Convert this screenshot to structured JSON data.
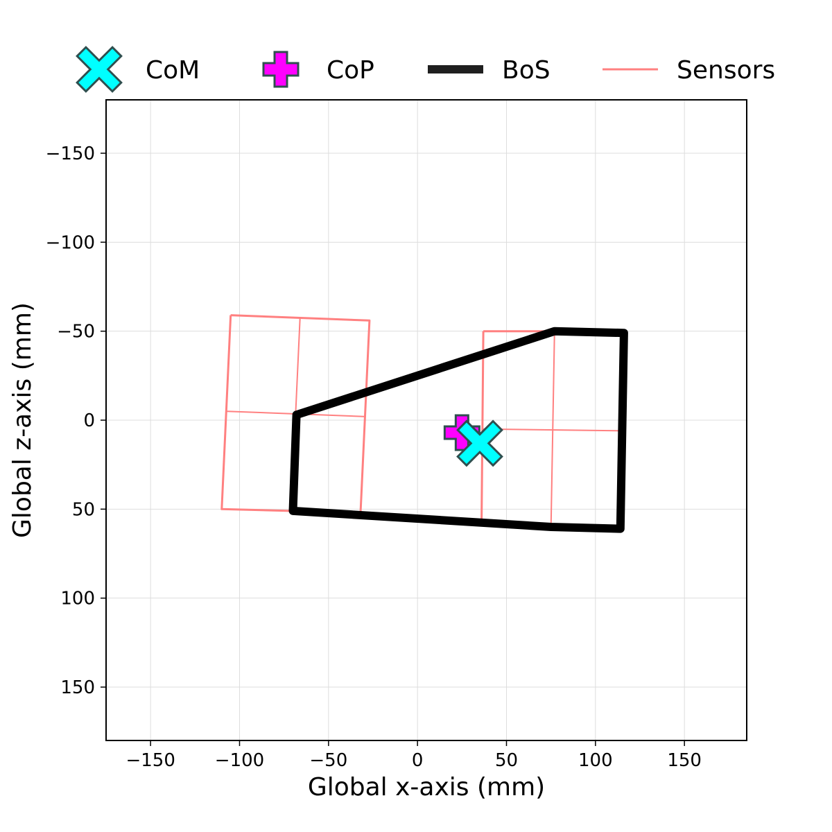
{
  "chart_data": {
    "type": "scatter",
    "title": "",
    "xlabel": "Global x-axis (mm)",
    "ylabel": "Global z-axis (mm)",
    "xlim": [
      -175,
      185
    ],
    "ylim": [
      180,
      -180
    ],
    "y_inverted": true,
    "xticks": [
      -150,
      -100,
      -50,
      0,
      50,
      100,
      150
    ],
    "yticks": [
      -150,
      -100,
      -50,
      0,
      50,
      100,
      150
    ],
    "xtick_labels": [
      "−150",
      "−100",
      "−50",
      "0",
      "50",
      "100",
      "150"
    ],
    "ytick_labels": [
      "−150",
      "−100",
      "−50",
      "0",
      "50",
      "100",
      "150"
    ],
    "grid": true,
    "legend_position": "top, outside plot",
    "legend": [
      {
        "label": "CoM",
        "marker": "x-filled",
        "color": "#00ffff"
      },
      {
        "label": "CoP",
        "marker": "plus-filled",
        "color": "#ff00ff"
      },
      {
        "label": "BoS",
        "marker": "thick-line",
        "color": "#1f1f1f"
      },
      {
        "label": "Sensors",
        "marker": "line",
        "color": "#ff8080"
      }
    ],
    "com": {
      "x": 35,
      "z": 13
    },
    "cop": {
      "x": 25,
      "z": 7
    },
    "bos": [
      [
        -68,
        -3
      ],
      [
        77,
        -50
      ],
      [
        116,
        -49
      ],
      [
        114,
        61
      ],
      [
        75,
        60
      ],
      [
        -70,
        51
      ],
      [
        -68,
        -3
      ]
    ],
    "sensors": [
      {
        "outline": [
          [
            -105,
            -59
          ],
          [
            -27,
            -56
          ],
          [
            -32,
            52
          ],
          [
            -110,
            50
          ],
          [
            -105,
            -59
          ]
        ],
        "dividers": [
          [
            [
              -66,
              -58
            ],
            [
              -71,
              51
            ]
          ],
          [
            [
              -107,
              -5
            ],
            [
              -29,
              -2
            ]
          ]
        ]
      },
      {
        "outline": [
          [
            37,
            -50
          ],
          [
            77,
            -50
          ],
          [
            117,
            -49
          ],
          [
            115,
            60
          ],
          [
            75,
            60
          ],
          [
            36,
            56
          ],
          [
            37,
            -50
          ]
        ],
        "dividers": [
          [
            [
              77,
              -50
            ],
            [
              75,
              60
            ]
          ],
          [
            [
              36,
              5
            ],
            [
              116,
              6
            ]
          ]
        ]
      }
    ],
    "colors": {
      "com_fill": "#00ffff",
      "cop_fill": "#ff00ff",
      "marker_edge": "#2f4f4f",
      "bos": "#000000",
      "sensors": "#ff8080",
      "grid": "#dddddd"
    }
  }
}
